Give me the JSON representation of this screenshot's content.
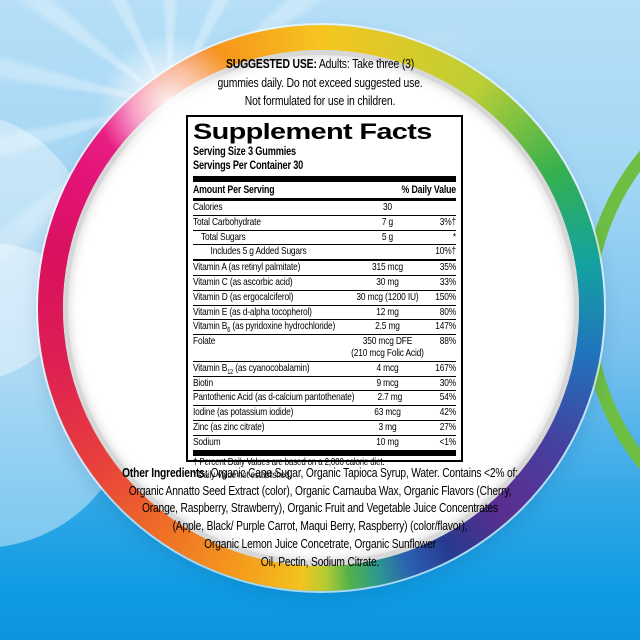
{
  "suggested_use": {
    "label": "SUGGESTED USE:",
    "line1_rest": " Adults: Take three (3)",
    "line2": "gummies daily. Do not exceed suggested use.",
    "line3": "Not formulated for use in children."
  },
  "facts": {
    "title": "Supplement Facts",
    "serving_size": "Serving Size 3 Gummies",
    "servings_per_container": "Servings Per Container 30",
    "col_amount": "Amount Per Serving",
    "col_dv": "% Daily Value",
    "rows": [
      {
        "name_pre": "Calories",
        "amount": "30",
        "dv": ""
      },
      {
        "name_pre": "Total Carbohydrate",
        "amount": "7 g",
        "dv": "3%†"
      },
      {
        "name_pre": "Total Sugars",
        "amount": "5 g",
        "dv": "*",
        "indent": 1
      },
      {
        "name_pre": "Includes 5 g Added Sugars",
        "amount": "",
        "dv": "10%†",
        "indent": 2
      },
      {
        "name_pre": "Vitamin A (as retinyl palmitate)",
        "amount": "315 mcg",
        "dv": "35%",
        "thick_top": true
      },
      {
        "name_pre": "Vitamin C (as ascorbic acid)",
        "amount": "30 mg",
        "dv": "33%"
      },
      {
        "name_pre": "Vitamin D (as ergocalciferol)",
        "amount": "30 mcg (1200 IU)",
        "dv": "150%"
      },
      {
        "name_pre": "Vitamin E (as d-alpha tocopherol)",
        "amount": "12 mg",
        "dv": "80%"
      },
      {
        "name_pre": "Vitamin B",
        "name_sub": "6",
        "name_post": " (as pyridoxine hydrochloride)",
        "amount": "2.5 mg",
        "dv": "147%"
      },
      {
        "name_pre": "Folate",
        "amount": "350 mcg DFE",
        "amount2": "(210 mcg Folic Acid)",
        "dv": "88%"
      },
      {
        "name_pre": "Vitamin B",
        "name_sub": "12",
        "name_post": " (as cyanocobalamin)",
        "amount": "4 mcg",
        "dv": "167%"
      },
      {
        "name_pre": "Biotin",
        "amount": "9 mcg",
        "dv": "30%"
      },
      {
        "name_pre": "Pantothenic Acid (as d-calcium pantothenate)",
        "amount": "2.7 mg",
        "dv": "54%"
      },
      {
        "name_pre": "Iodine (as potassium iodide)",
        "amount": "63 mcg",
        "dv": "42%"
      },
      {
        "name_pre": "Zinc (as zinc citrate)",
        "amount": "3 mg",
        "dv": "27%"
      },
      {
        "name_pre": "Sodium",
        "amount": "10 mg",
        "dv": "<1%"
      }
    ],
    "footnotes": [
      "† Percent Daily Values are based on a 2,000 calorie diet.",
      "* Daily Value not established."
    ]
  },
  "other_ingredients": {
    "label": "Other Ingredients:",
    "line1_rest": " Organic Cane  Sugar, Organic Tapioca Syrup, Water. Contains <2% of:",
    "lines": [
      "Organic Annatto Seed Extract (color), Organic Carnauba Wax, Organic Flavors (Cherry,",
      "Orange, Raspberry, Strawberry), Organic Fruit and Vegetable Juice Concentrates",
      "(Apple, Black/ Purple Carrot, Maqui Berry, Raspberry) (color/flavor),",
      "Organic Lemon Juice  Concetrate, Organic Sunflower",
      "Oil, Pectin, Sodium Citrate."
    ]
  },
  "colors": {
    "sky_top": "#b6dff7",
    "sky_bottom": "#0c95de",
    "green_arc": "#6fbe44",
    "silver_rim": "#d7d7d7",
    "ring_yellow": "#f6c51f",
    "ring_purple": "#5b2d90",
    "ring_crimson": "#d9115e"
  }
}
